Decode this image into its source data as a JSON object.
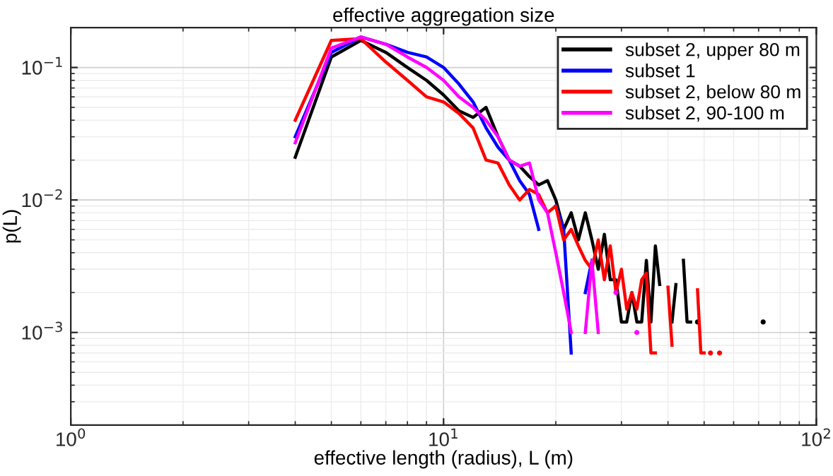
{
  "chart_data": {
    "type": "line",
    "title": "effective aggregation size",
    "xlabel": "effective length (radius), L (m)",
    "ylabel": "p(L)",
    "log": "xy",
    "grid": true,
    "legend": "top right",
    "line_style": "solid",
    "xlim": [
      1,
      100
    ],
    "ylim": [
      0.0002,
      0.2
    ],
    "xticks": [
      {
        "value": 1,
        "label": "10$^{0}$"
      },
      {
        "value": 10,
        "label": "10$^{1}$"
      },
      {
        "value": 100,
        "label": "10$^{2}$"
      }
    ],
    "yticks": [
      {
        "value": 0.001,
        "label": "10$^{−3}$"
      },
      {
        "value": 0.01,
        "label": "10$^{−2}$"
      },
      {
        "value": 0.1,
        "label": "10$^{−1}$"
      }
    ],
    "x": [
      4,
      5,
      6,
      7,
      8,
      9,
      10,
      11,
      12,
      13,
      14,
      15,
      16,
      17,
      18,
      19,
      20,
      21,
      22,
      23,
      24,
      25,
      26,
      27,
      28,
      29,
      30,
      31,
      32,
      33,
      34,
      35,
      36,
      37,
      38,
      39,
      40,
      41,
      42,
      43,
      44,
      45,
      46,
      47,
      48,
      49,
      50,
      51,
      52,
      53,
      54,
      55,
      56,
      57,
      58,
      59,
      60,
      61,
      62,
      63,
      64,
      65,
      66,
      67,
      68,
      69,
      70,
      71,
      72
    ],
    "series": [
      {
        "name": "subset 2, upper 80 m",
        "color": "#000000",
        "values": [
          0.021,
          0.12,
          0.16,
          0.13,
          0.1,
          0.08,
          0.062,
          0.047,
          0.042,
          0.05,
          0.03,
          0.02,
          0.018,
          0.015,
          0.013,
          0.014,
          0.01,
          0.006,
          0.008,
          0.005,
          0.008,
          0.005,
          0.003,
          0.0055,
          0.0025,
          0.0025,
          0.0012,
          0.0012,
          0.002,
          0.0012,
          0.0012,
          0.0035,
          0.0012,
          0.0045,
          0.0023,
          null,
          null,
          0.0012,
          0.0023,
          null,
          0.0035,
          0.0012,
          0.0012,
          null,
          0.0012,
          null,
          null,
          null,
          null,
          null,
          null,
          null,
          null,
          null,
          null,
          null,
          null,
          null,
          null,
          null,
          null,
          null,
          null,
          null,
          null,
          null,
          null,
          null,
          0.0012
        ]
      },
      {
        "name": "subset 1",
        "color": "#0000ff",
        "values": [
          0.03,
          0.13,
          0.17,
          0.15,
          0.13,
          0.12,
          0.1,
          0.075,
          0.055,
          0.035,
          0.025,
          0.02,
          0.014,
          0.011,
          0.006,
          null,
          0.009,
          0.006,
          0.0007,
          null,
          0.002,
          0.0035,
          null,
          null,
          null,
          null,
          null,
          null,
          null,
          null,
          null,
          null,
          null,
          null,
          null,
          null,
          null,
          null,
          null,
          null,
          null,
          null,
          null,
          null,
          null,
          null,
          null,
          null,
          null,
          null,
          null,
          null,
          null,
          null,
          null,
          null,
          null,
          null,
          null,
          null,
          null,
          null,
          null,
          null,
          null,
          null,
          null,
          null,
          null
        ]
      },
      {
        "name": "subset 2, below 80 m",
        "color": "#ff0000",
        "values": [
          0.04,
          0.16,
          0.165,
          0.11,
          0.08,
          0.06,
          0.055,
          0.045,
          0.035,
          0.02,
          0.019,
          0.013,
          0.01,
          0.012,
          0.011,
          0.008,
          0.009,
          0.005,
          0.006,
          0.0045,
          0.0035,
          0.003,
          0.005,
          0.0025,
          0.0045,
          0.002,
          0.003,
          0.0015,
          0.002,
          0.0015,
          0.0025,
          0.0028,
          0.0007,
          0.0007,
          null,
          null,
          0.0022,
          0.0008,
          null,
          null,
          null,
          null,
          null,
          null,
          0.0021,
          0.0007,
          0.0007,
          null,
          0.0007,
          null,
          null,
          0.0007,
          null,
          null,
          null,
          null,
          null,
          null,
          null,
          null,
          null,
          null,
          null,
          null,
          null,
          null,
          null,
          null,
          null
        ]
      },
      {
        "name": "subset 2, 90-100 m",
        "color": "#ff00ff",
        "values": [
          0.027,
          0.14,
          0.17,
          0.15,
          0.12,
          0.1,
          0.08,
          0.06,
          0.05,
          0.04,
          0.03,
          0.02,
          0.018,
          0.019,
          0.01,
          0.008,
          0.004,
          0.002,
          0.001,
          null,
          0.001,
          0.0035,
          0.001,
          null,
          null,
          0.002,
          null,
          null,
          null,
          0.001,
          null,
          null,
          null,
          null,
          null,
          null,
          null,
          null,
          null,
          null,
          null,
          null,
          null,
          null,
          null,
          null,
          null,
          null,
          null,
          null,
          null,
          null,
          null,
          null,
          null,
          null,
          null,
          null,
          null,
          null,
          null,
          null,
          null,
          null,
          null,
          null,
          null,
          null,
          null
        ]
      }
    ]
  }
}
